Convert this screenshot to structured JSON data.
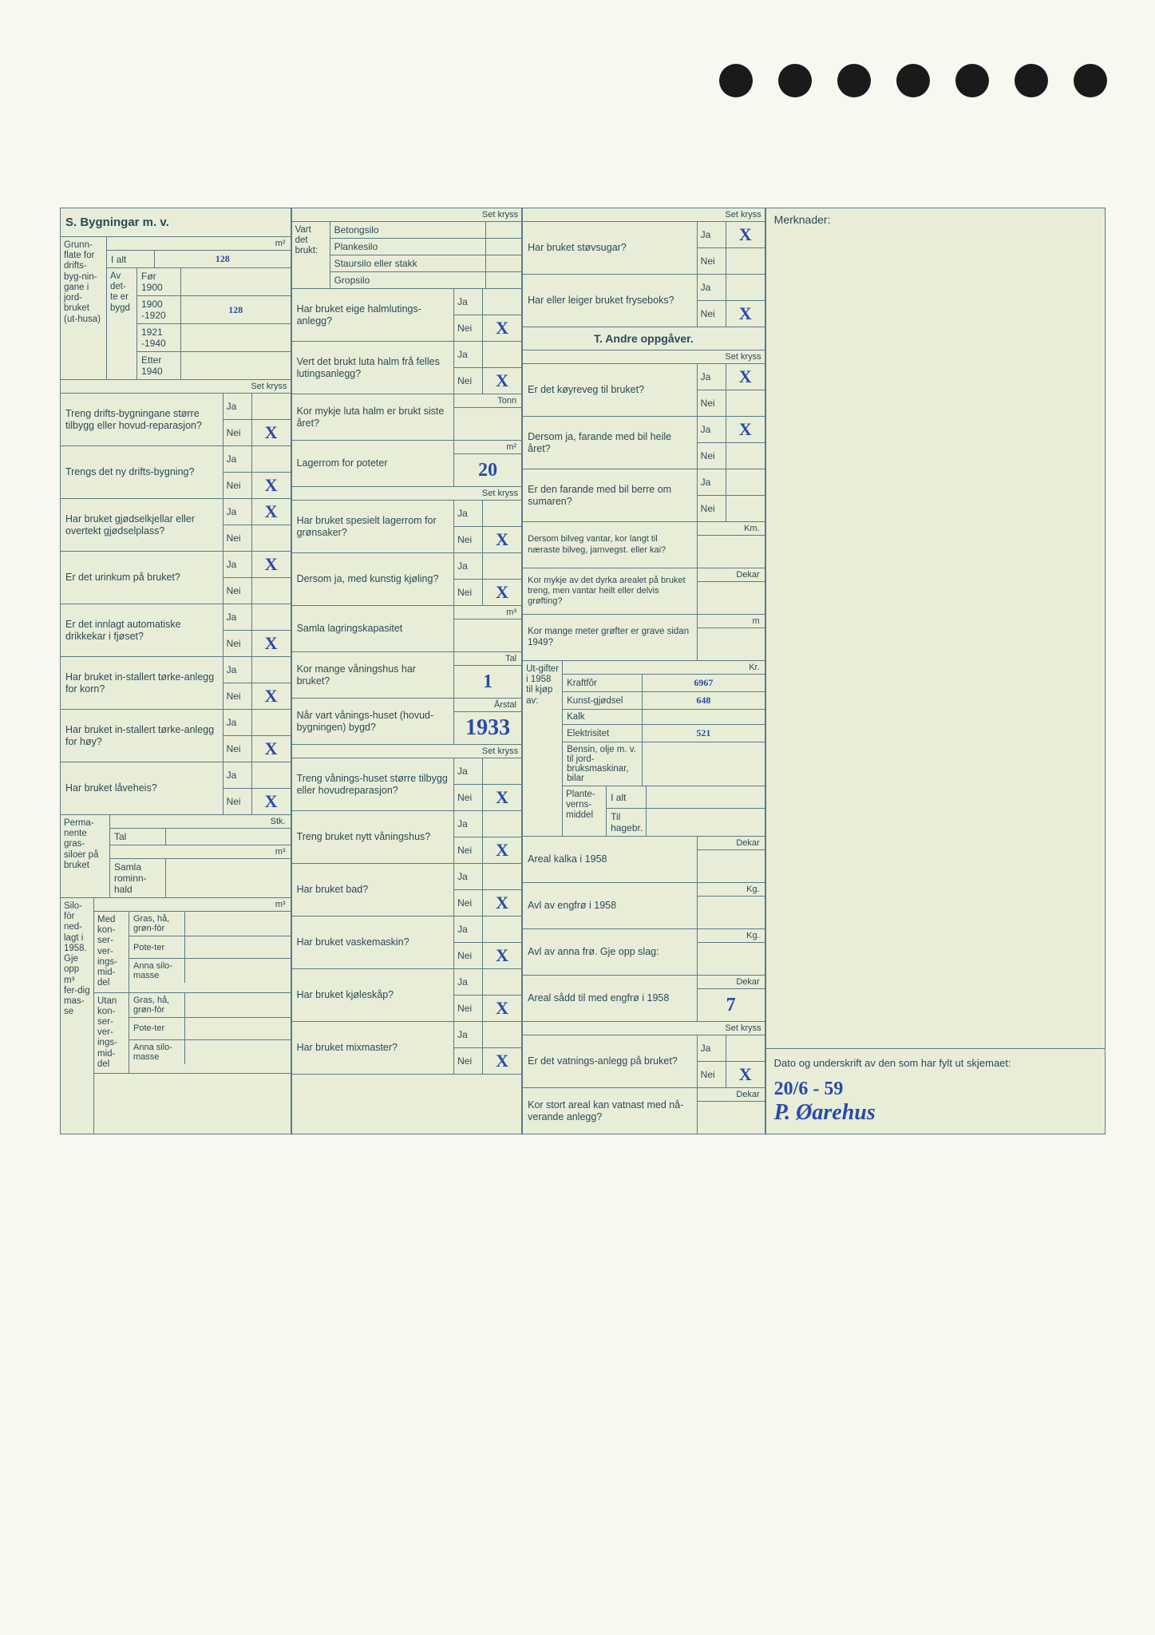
{
  "holes_count": 7,
  "section_s_title": "S. Bygningar m. v.",
  "section_t_title": "T. Andre oppgåver.",
  "set_kryss": "Set kryss",
  "merknader_label": "Merknader:",
  "ja": "Ja",
  "nei": "Nei",
  "grunnflate": {
    "label": "Grunn-flate for drifts-byg-nin-gane i jord-bruket (ut-husa)",
    "unit": "m²",
    "i_alt_label": "I alt",
    "i_alt_value": "128",
    "av_dette_label": "Av det-te er bygd",
    "periods": {
      "p1": "Før 1900",
      "p2": "1900 -1920",
      "p3": "1921 -1940",
      "p4": "Etter 1940"
    },
    "p2_value": "128"
  },
  "col1_questions": [
    {
      "q": "Treng drifts-bygningane større tilbygg eller hovud-reparasjon?",
      "ja": "",
      "nei": "X"
    },
    {
      "q": "Trengs det ny drifts-bygning?",
      "ja": "",
      "nei": "X"
    },
    {
      "q": "Har bruket gjødselkjellar eller overtekt gjødselplass?",
      "ja": "X",
      "nei": ""
    },
    {
      "q": "Er det urinkum på bruket?",
      "ja": "X",
      "nei": ""
    },
    {
      "q": "Er det innlagt automatiske drikkekar i fjøset?",
      "ja": "",
      "nei": "X"
    },
    {
      "q": "Har bruket in-stallert tørke-anlegg for korn?",
      "ja": "",
      "nei": "X"
    },
    {
      "q": "Har bruket in-stallert tørke-anlegg for høy?",
      "ja": "",
      "nei": "X"
    },
    {
      "q": "Har bruket låveheis?",
      "ja": "",
      "nei": "X"
    }
  ],
  "permanente": {
    "label": "Perma-nente gras-siloer på bruket",
    "tal_label": "Tal",
    "tal_unit": "Stk.",
    "rom_label": "Samla rominn-hald",
    "rom_unit": "m³"
  },
  "silofor": {
    "label": "Silo-fòr ned-lagt i 1958. Gje opp m³ fer-dig mas-se",
    "med_label": "Med kon-ser-ver-ings-mid-del",
    "utan_label": "Utan kon-ser-ver-ings-mid-del",
    "unit": "m³",
    "rows": [
      "Gras, hå, grøn-fòr",
      "Pote-ter",
      "Anna silo-masse"
    ]
  },
  "col2_top": {
    "vart_label": "Vart det brukt:",
    "rows": [
      "Betongsilo",
      "Plankesilo",
      "Staursilo eller stakk",
      "Gropsilo"
    ]
  },
  "col2_questions": [
    {
      "q": "Har bruket eige halmlutings-anlegg?",
      "ja": "",
      "nei": "X"
    },
    {
      "q": "Vert det brukt luta halm frå felles lutingsanlegg?",
      "ja": "",
      "nei": "X"
    }
  ],
  "luta_halm": {
    "q": "Kor mykje luta halm er brukt siste året?",
    "unit": "Tonn",
    "val": ""
  },
  "lagerrom_potet": {
    "q": "Lagerrom for poteter",
    "unit": "m²",
    "val": "20"
  },
  "spesielt_lager": {
    "q": "Har bruket spesielt lagerrom for grønsaker?",
    "ja": "",
    "nei": "X"
  },
  "kunstig_kjol": {
    "q": "Dersom ja, med kunstig kjøling?",
    "ja": "",
    "nei": "X"
  },
  "samla_lager": {
    "q": "Samla lagringskapasitet",
    "unit": "m³",
    "val": ""
  },
  "vaningshus_tal": {
    "q": "Kor mange våningshus har bruket?",
    "unit": "Tal",
    "val": "1"
  },
  "vaningshus_ar": {
    "q": "Når vart vånings-huset (hovud-bygningen) bygd?",
    "unit": "Årstal",
    "val": "1933"
  },
  "vaning_rep": {
    "q": "Treng vånings-huset større tilbygg eller hovudreparasjon?",
    "ja": "",
    "nei": "X"
  },
  "nytt_vaning": {
    "q": "Treng bruket nytt våningshus?",
    "ja": "",
    "nei": "X"
  },
  "col2_bottom": [
    {
      "q": "Har bruket bad?",
      "ja": "",
      "nei": "X"
    },
    {
      "q": "Har bruket vaskemaskin?",
      "ja": "",
      "nei": "X"
    },
    {
      "q": "Har bruket kjøleskåp?",
      "ja": "",
      "nei": "X"
    },
    {
      "q": "Har bruket mixmaster?",
      "ja": "",
      "nei": "X"
    }
  ],
  "col3_top": [
    {
      "q": "Har bruket støvsugar?",
      "ja": "X",
      "nei": ""
    },
    {
      "q": "Har eller leiger bruket fryseboks?",
      "ja": "",
      "nei": "X"
    }
  ],
  "koyre": {
    "q": "Er det køyreveg til bruket?",
    "ja": "X",
    "nei": ""
  },
  "farande_heile": {
    "q": "Dersom ja, farande med bil heile året?",
    "ja": "X",
    "nei": ""
  },
  "farande_sumar": {
    "q": "Er den farande med bil berre om sumaren?",
    "ja": "",
    "nei": ""
  },
  "bilveg_km": {
    "q": "Dersom bilveg vantar, kor langt til næraste bilveg, jarnvegst. eller kai?",
    "unit": "Km.",
    "val": ""
  },
  "grofting": {
    "q": "Kor mykje av det dyrka arealet på bruket treng, men vantar heilt eller delvis grøfting?",
    "unit": "Dekar",
    "val": ""
  },
  "grofter_m": {
    "q": "Kor mange meter grøfter er grave sidan 1949?",
    "unit": "m",
    "val": ""
  },
  "utgifter": {
    "label": "Ut-gifter i 1958 til kjøp av:",
    "unit": "Kr.",
    "rows": [
      {
        "l": "Kraftfôr",
        "v": "6967"
      },
      {
        "l": "Kunst-gjødsel",
        "v": "648"
      },
      {
        "l": "Kalk",
        "v": ""
      },
      {
        "l": "Elektrisitet",
        "v": "521"
      },
      {
        "l": "Bensin, olje m. v. til jord-bruksmaskinar, bilar",
        "v": ""
      }
    ],
    "plante_label": "Plante-verns-middel",
    "plante_alt": "I alt",
    "plante_hage": "Til hagebr."
  },
  "areal_kalka": {
    "q": "Areal kalka i 1958",
    "unit": "Dekar",
    "val": ""
  },
  "avl_engfro": {
    "q": "Avl av engfrø i 1958",
    "unit": "Kg.",
    "val": ""
  },
  "avl_anna": {
    "q": "Avl av anna frø. Gje opp slag:",
    "unit": "Kg.",
    "val": ""
  },
  "areal_sadd": {
    "q": "Areal sådd til med engfrø i 1958",
    "unit": "Dekar",
    "val": "7"
  },
  "vatning": {
    "q": "Er det vatnings-anlegg på bruket?",
    "ja": "",
    "nei": "X"
  },
  "vatnast": {
    "q": "Kor stort areal kan vatnast med nå-verande anlegg?",
    "unit": "Dekar",
    "val": ""
  },
  "signature": {
    "label": "Dato og underskrift av den som har fylt ut skjemaet:",
    "date": "20/6 - 59",
    "name": "P. Øarehus"
  }
}
